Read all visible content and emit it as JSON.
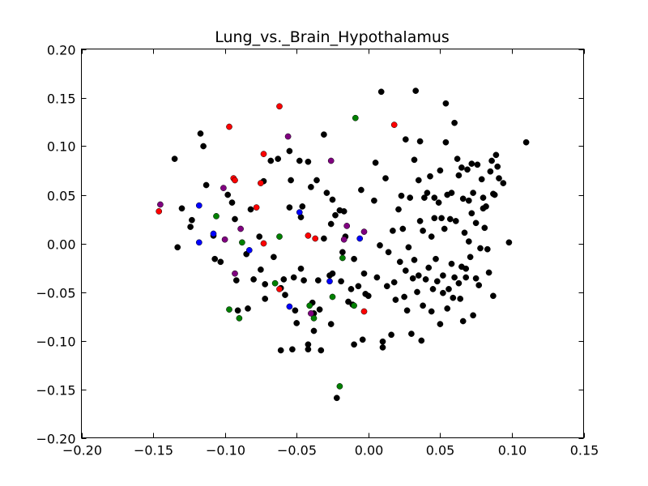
{
  "chart_data": {
    "type": "scatter",
    "title": "Lung_vs._Brain_Hypothalamus",
    "xlabel": "",
    "ylabel": "",
    "xlim": [
      -0.2,
      0.15
    ],
    "ylim": [
      -0.2,
      0.2
    ],
    "xticks": [
      -0.2,
      -0.15,
      -0.1,
      -0.05,
      0.0,
      0.05,
      0.1,
      0.15
    ],
    "xtick_labels": [
      "−0.20",
      "−0.15",
      "−0.10",
      "−0.05",
      "0.00",
      "0.05",
      "0.10",
      "0.15"
    ],
    "yticks": [
      -0.2,
      -0.15,
      -0.1,
      -0.05,
      0.0,
      0.05,
      0.1,
      0.15,
      0.2
    ],
    "ytick_labels": [
      "−0.20",
      "−0.15",
      "−0.10",
      "−0.05",
      "0.00",
      "0.05",
      "0.10",
      "0.15",
      "0.20"
    ],
    "grid": false,
    "legend": "none",
    "series": [
      {
        "color": "#000000",
        "points": [
          [
            -0.135,
            0.087
          ],
          [
            -0.13,
            0.036
          ],
          [
            -0.133,
            -0.004
          ],
          [
            -0.123,
            0.024
          ],
          [
            -0.124,
            0.017
          ],
          [
            -0.117,
            0.113
          ],
          [
            -0.115,
            0.1
          ],
          [
            -0.113,
            0.06
          ],
          [
            -0.108,
            0.008
          ],
          [
            -0.107,
            -0.016
          ],
          [
            -0.103,
            -0.019
          ],
          [
            -0.098,
            0.05
          ],
          [
            -0.095,
            0.042
          ],
          [
            -0.093,
            0.025
          ],
          [
            -0.092,
            -0.038
          ],
          [
            -0.091,
            -0.069
          ],
          [
            -0.085,
            -0.011
          ],
          [
            -0.084,
            -0.067
          ],
          [
            -0.082,
            0.035
          ],
          [
            -0.08,
            -0.037
          ],
          [
            -0.076,
            0.007
          ],
          [
            -0.075,
            -0.027
          ],
          [
            -0.073,
            0.064
          ],
          [
            -0.072,
            -0.042
          ],
          [
            -0.072,
            -0.057
          ],
          [
            -0.068,
            0.085
          ],
          [
            -0.066,
            -0.014
          ],
          [
            -0.063,
            0.087
          ],
          [
            -0.061,
            -0.046
          ],
          [
            -0.061,
            -0.11
          ],
          [
            -0.059,
            -0.037
          ],
          [
            -0.058,
            -0.053
          ],
          [
            -0.055,
            0.037
          ],
          [
            -0.055,
            0.095
          ],
          [
            -0.054,
            0.065
          ],
          [
            -0.053,
            -0.109
          ],
          [
            -0.052,
            -0.035
          ],
          [
            -0.051,
            -0.069
          ],
          [
            -0.05,
            -0.082
          ],
          [
            -0.048,
            0.085
          ],
          [
            -0.047,
            0.027
          ],
          [
            -0.047,
            -0.026
          ],
          [
            -0.046,
            0.038
          ],
          [
            -0.045,
            -0.038
          ],
          [
            -0.042,
            0.084
          ],
          [
            -0.042,
            -0.104
          ],
          [
            -0.042,
            -0.109
          ],
          [
            -0.04,
            0.058
          ],
          [
            -0.039,
            -0.061
          ],
          [
            -0.038,
            -0.09
          ],
          [
            -0.038,
            -0.072
          ],
          [
            -0.036,
            0.065
          ],
          [
            -0.035,
            -0.038
          ],
          [
            -0.034,
            -0.068
          ],
          [
            -0.033,
            -0.11
          ],
          [
            -0.031,
            0.112
          ],
          [
            -0.031,
            0.005
          ],
          [
            -0.029,
            0.052
          ],
          [
            -0.027,
            -0.033
          ],
          [
            -0.026,
            -0.083
          ],
          [
            -0.026,
            0.02
          ],
          [
            -0.025,
            0.045
          ],
          [
            -0.025,
            -0.031
          ],
          [
            -0.023,
            0.029
          ],
          [
            -0.022,
            -0.159
          ],
          [
            -0.02,
            0.034
          ],
          [
            -0.019,
            -0.039
          ],
          [
            -0.018,
            -0.009
          ],
          [
            -0.017,
            0.033
          ],
          [
            -0.016,
            0.007
          ],
          [
            -0.014,
            -0.06
          ],
          [
            -0.012,
            -0.047
          ],
          [
            -0.011,
            -0.063
          ],
          [
            -0.01,
            -0.104
          ],
          [
            -0.01,
            -0.016
          ],
          [
            -0.007,
            -0.044
          ],
          [
            -0.005,
            0.055
          ],
          [
            -0.004,
            -0.099
          ],
          [
            -0.003,
            -0.031
          ],
          [
            -0.002,
            -0.052
          ],
          [
            0.0,
            -0.054
          ],
          [
            0.004,
            0.044
          ],
          [
            0.005,
            0.083
          ],
          [
            0.006,
            -0.035
          ],
          [
            0.008,
            -0.002
          ],
          [
            0.009,
            0.156
          ],
          [
            0.01,
            -0.101
          ],
          [
            0.01,
            -0.107
          ],
          [
            0.012,
            0.067
          ],
          [
            0.013,
            -0.044
          ],
          [
            0.014,
            -0.009
          ],
          [
            0.016,
            -0.094
          ],
          [
            0.017,
            0.013
          ],
          [
            0.018,
            -0.04
          ],
          [
            0.019,
            -0.058
          ],
          [
            0.021,
            0.035
          ],
          [
            0.022,
            -0.019
          ],
          [
            0.023,
            0.049
          ],
          [
            0.024,
            0.015
          ],
          [
            0.025,
            -0.055
          ],
          [
            0.026,
            -0.028
          ],
          [
            0.026,
            0.107
          ],
          [
            0.027,
            -0.069
          ],
          [
            0.028,
            -0.004
          ],
          [
            0.029,
            0.047
          ],
          [
            0.03,
            -0.093
          ],
          [
            0.031,
            -0.036
          ],
          [
            0.032,
            0.086
          ],
          [
            0.032,
            -0.017
          ],
          [
            0.033,
            0.157
          ],
          [
            0.034,
            -0.05
          ],
          [
            0.035,
            0.065
          ],
          [
            0.035,
            -0.033
          ],
          [
            0.036,
            0.105
          ],
          [
            0.036,
            0.023
          ],
          [
            0.037,
            -0.1
          ],
          [
            0.038,
            -0.064
          ],
          [
            0.038,
            0.013
          ],
          [
            0.039,
            0.047
          ],
          [
            0.04,
            -0.037
          ],
          [
            0.041,
            0.052
          ],
          [
            0.042,
            -0.025
          ],
          [
            0.043,
            0.069
          ],
          [
            0.044,
            0.007
          ],
          [
            0.044,
            -0.07
          ],
          [
            0.045,
            -0.047
          ],
          [
            0.046,
            0.047
          ],
          [
            0.046,
            0.026
          ],
          [
            0.047,
            -0.016
          ],
          [
            0.048,
            -0.039
          ],
          [
            0.049,
            0.042
          ],
          [
            0.05,
            -0.083
          ],
          [
            0.05,
            0.075
          ],
          [
            0.051,
            0.026
          ],
          [
            0.052,
            -0.051
          ],
          [
            0.052,
            -0.033
          ],
          [
            0.053,
            0.015
          ],
          [
            0.054,
            0.144
          ],
          [
            0.054,
            0.104
          ],
          [
            0.055,
            -0.067
          ],
          [
            0.055,
            0.05
          ],
          [
            0.056,
            -0.047
          ],
          [
            0.057,
            0.025
          ],
          [
            0.058,
            -0.021
          ],
          [
            0.058,
            0.052
          ],
          [
            0.059,
            -0.056
          ],
          [
            0.06,
            0.124
          ],
          [
            0.06,
            -0.035
          ],
          [
            0.061,
            0.023
          ],
          [
            0.062,
            0.087
          ],
          [
            0.063,
            0.07
          ],
          [
            0.063,
            -0.041
          ],
          [
            0.064,
            -0.057
          ],
          [
            0.065,
            -0.024
          ],
          [
            0.065,
            0.078
          ],
          [
            0.066,
            0.046
          ],
          [
            0.066,
            -0.08
          ],
          [
            0.067,
            0.011
          ],
          [
            0.068,
            -0.035
          ],
          [
            0.068,
            -0.026
          ],
          [
            0.069,
            0.076
          ],
          [
            0.07,
            0.002
          ],
          [
            0.07,
            0.044
          ],
          [
            0.071,
            -0.014
          ],
          [
            0.072,
            0.082
          ],
          [
            0.072,
            0.031
          ],
          [
            0.073,
            -0.074
          ],
          [
            0.073,
            0.052
          ],
          [
            0.075,
            0.021
          ],
          [
            0.075,
            -0.036
          ],
          [
            0.076,
            0.081
          ],
          [
            0.077,
            -0.043
          ],
          [
            0.078,
            -0.005
          ],
          [
            0.079,
            0.066
          ],
          [
            0.08,
            0.047
          ],
          [
            0.08,
            0.036
          ],
          [
            0.081,
            0.016
          ],
          [
            0.082,
            0.038
          ],
          [
            0.083,
            -0.006
          ],
          [
            0.084,
            -0.03
          ],
          [
            0.085,
            0.074
          ],
          [
            0.086,
            0.085
          ],
          [
            0.087,
            0.051
          ],
          [
            0.087,
            -0.054
          ],
          [
            0.088,
            0.05
          ],
          [
            0.089,
            0.091
          ],
          [
            0.09,
            0.079
          ],
          [
            0.091,
            0.067
          ],
          [
            0.094,
            0.062
          ],
          [
            0.098,
            0.001
          ],
          [
            0.11,
            0.104
          ]
        ]
      },
      {
        "color": "#ff0000",
        "points": [
          [
            -0.146,
            0.033
          ],
          [
            -0.097,
            0.12
          ],
          [
            -0.094,
            0.067
          ],
          [
            -0.093,
            0.065
          ],
          [
            -0.078,
            0.037
          ],
          [
            -0.075,
            0.062
          ],
          [
            -0.073,
            0.092
          ],
          [
            -0.073,
            0.0
          ],
          [
            -0.062,
            0.141
          ],
          [
            -0.062,
            -0.047
          ],
          [
            -0.042,
            0.008
          ],
          [
            -0.037,
            0.005
          ],
          [
            -0.003,
            -0.07
          ],
          [
            0.018,
            0.122
          ]
        ]
      },
      {
        "color": "#0000ff",
        "points": [
          [
            -0.118,
            0.039
          ],
          [
            -0.118,
            0.001
          ],
          [
            -0.108,
            0.01
          ],
          [
            -0.083,
            -0.007
          ],
          [
            -0.055,
            -0.065
          ],
          [
            -0.048,
            0.032
          ],
          [
            -0.027,
            -0.039
          ],
          [
            -0.006,
            0.005
          ]
        ]
      },
      {
        "color": "#008000",
        "points": [
          [
            -0.106,
            0.028
          ],
          [
            -0.088,
            0.001
          ],
          [
            -0.097,
            -0.068
          ],
          [
            -0.09,
            -0.077
          ],
          [
            -0.065,
            -0.041
          ],
          [
            -0.062,
            0.007
          ],
          [
            -0.041,
            -0.064
          ],
          [
            -0.038,
            -0.077
          ],
          [
            -0.025,
            -0.055
          ],
          [
            -0.018,
            -0.015
          ],
          [
            -0.01,
            -0.064
          ],
          [
            -0.009,
            0.129
          ],
          [
            -0.02,
            -0.147
          ]
        ]
      },
      {
        "color": "#800080",
        "points": [
          [
            -0.145,
            0.04
          ],
          [
            -0.101,
            0.057
          ],
          [
            -0.1,
            0.004
          ],
          [
            -0.093,
            -0.031
          ],
          [
            -0.089,
            0.015
          ],
          [
            -0.056,
            0.11
          ],
          [
            -0.026,
            0.085
          ],
          [
            -0.015,
            0.018
          ],
          [
            -0.04,
            -0.072
          ],
          [
            -0.017,
            0.004
          ],
          [
            -0.003,
            0.012
          ]
        ]
      }
    ]
  }
}
